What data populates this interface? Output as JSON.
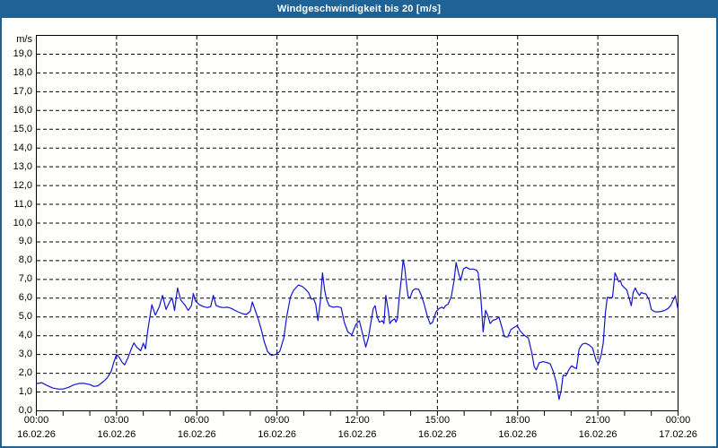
{
  "title_bar": {
    "text": "Windgeschwindigkeit bis 20 [m/s]"
  },
  "colors": {
    "frame_blue": "#1f6396",
    "title_text": "#ffffff",
    "page_bg": "#fffffd",
    "plot_bg": "#fffffd",
    "grid": "#000000",
    "axis": "#000000",
    "label_text": "#000000",
    "line": "#1414cc"
  },
  "chart_data": {
    "type": "line",
    "title": "Windgeschwindigkeit bis 20 [m/s]",
    "ylabel_unit": "m/s",
    "ylim": [
      0,
      20
    ],
    "xlim_hours": [
      0,
      24
    ],
    "grid": "dashed, horizontal every 1.0 m/s, vertical every 3 h",
    "legend": "none",
    "y_tick_labels": [
      "0,0",
      "1,0",
      "2,0",
      "3,0",
      "4,0",
      "5,0",
      "6,0",
      "7,0",
      "8,0",
      "9,0",
      "10,0",
      "11,0",
      "12,0",
      "13,0",
      "14,0",
      "15,0",
      "16,0",
      "17,0",
      "18,0",
      "19,0"
    ],
    "x_minor_tick_every_hours": 1,
    "x_major_ticks": [
      {
        "hour": 0,
        "time": "00:00",
        "date": "16.02.26"
      },
      {
        "hour": 3,
        "time": "03:00",
        "date": "16.02.26"
      },
      {
        "hour": 6,
        "time": "06:00",
        "date": "16.02.26"
      },
      {
        "hour": 9,
        "time": "09:00",
        "date": "16.02.26"
      },
      {
        "hour": 12,
        "time": "12:00",
        "date": "16.02.26"
      },
      {
        "hour": 15,
        "time": "15:00",
        "date": "16.02.26"
      },
      {
        "hour": 18,
        "time": "18:00",
        "date": "16.02.26"
      },
      {
        "hour": 21,
        "time": "21:00",
        "date": "16.02.26"
      },
      {
        "hour": 24,
        "time": "00:00",
        "date": "17.02.26"
      }
    ],
    "series": [
      {
        "name": "Windgeschwindigkeit",
        "unit": "m/s",
        "points_hour_value": [
          [
            0,
            1.45
          ],
          [
            0.2,
            1.5
          ],
          [
            0.4,
            1.35
          ],
          [
            0.6,
            1.22
          ],
          [
            0.8,
            1.16
          ],
          [
            1,
            1.16
          ],
          [
            1.2,
            1.25
          ],
          [
            1.4,
            1.38
          ],
          [
            1.6,
            1.46
          ],
          [
            1.8,
            1.46
          ],
          [
            2,
            1.4
          ],
          [
            2.15,
            1.3
          ],
          [
            2.3,
            1.33
          ],
          [
            2.5,
            1.55
          ],
          [
            2.65,
            1.75
          ],
          [
            2.8,
            2.1
          ],
          [
            2.9,
            2.6
          ],
          [
            3,
            3
          ],
          [
            3.1,
            2.85
          ],
          [
            3.2,
            2.6
          ],
          [
            3.3,
            2.45
          ],
          [
            3.42,
            2.8
          ],
          [
            3.55,
            3.3
          ],
          [
            3.65,
            3.62
          ],
          [
            3.75,
            3.4
          ],
          [
            3.9,
            3.2
          ],
          [
            4,
            3.6
          ],
          [
            4.08,
            3.3
          ],
          [
            4.18,
            4.4
          ],
          [
            4.32,
            5.65
          ],
          [
            4.45,
            5.1
          ],
          [
            4.6,
            5.55
          ],
          [
            4.72,
            6.15
          ],
          [
            4.85,
            5.4
          ],
          [
            5,
            5.85
          ],
          [
            5.08,
            6
          ],
          [
            5.17,
            5.35
          ],
          [
            5.28,
            6.55
          ],
          [
            5.4,
            5.9
          ],
          [
            5.55,
            5.65
          ],
          [
            5.68,
            5.35
          ],
          [
            5.8,
            5.6
          ],
          [
            5.87,
            6.25
          ],
          [
            5.95,
            5.85
          ],
          [
            6.1,
            5.65
          ],
          [
            6.25,
            5.55
          ],
          [
            6.4,
            5.5
          ],
          [
            6.52,
            5.55
          ],
          [
            6.62,
            6.15
          ],
          [
            6.72,
            5.62
          ],
          [
            6.85,
            5.53
          ],
          [
            7,
            5.5
          ],
          [
            7.15,
            5.52
          ],
          [
            7.3,
            5.45
          ],
          [
            7.5,
            5.3
          ],
          [
            7.7,
            5.18
          ],
          [
            7.85,
            5.13
          ],
          [
            8,
            5.3
          ],
          [
            8.08,
            5.8
          ],
          [
            8.2,
            5.3
          ],
          [
            8.3,
            4.88
          ],
          [
            8.42,
            4.3
          ],
          [
            8.52,
            3.7
          ],
          [
            8.65,
            3.15
          ],
          [
            8.8,
            2.95
          ],
          [
            8.95,
            3
          ],
          [
            9.1,
            3.15
          ],
          [
            9.25,
            3.85
          ],
          [
            9.37,
            5.05
          ],
          [
            9.5,
            6.05
          ],
          [
            9.62,
            6.42
          ],
          [
            9.8,
            6.7
          ],
          [
            9.95,
            6.62
          ],
          [
            10.05,
            6.5
          ],
          [
            10.18,
            6.3
          ],
          [
            10.28,
            5.95
          ],
          [
            10.37,
            5.97
          ],
          [
            10.45,
            5.68
          ],
          [
            10.53,
            4.8
          ],
          [
            10.62,
            5.8
          ],
          [
            10.7,
            7.35
          ],
          [
            10.78,
            6.45
          ],
          [
            10.85,
            5.95
          ],
          [
            10.95,
            5.6
          ],
          [
            11.1,
            5.52
          ],
          [
            11.25,
            5.55
          ],
          [
            11.4,
            5.5
          ],
          [
            11.52,
            4.7
          ],
          [
            11.65,
            4.2
          ],
          [
            11.8,
            4.05
          ],
          [
            11.95,
            4.6
          ],
          [
            12.08,
            4.8
          ],
          [
            12.2,
            4.1
          ],
          [
            12.32,
            3.4
          ],
          [
            12.42,
            3.9
          ],
          [
            12.5,
            4.6
          ],
          [
            12.6,
            5.45
          ],
          [
            12.67,
            5.6
          ],
          [
            12.75,
            5
          ],
          [
            12.83,
            4.72
          ],
          [
            12.94,
            4.8
          ],
          [
            13,
            4.65
          ],
          [
            13.07,
            6.15
          ],
          [
            13.16,
            5.35
          ],
          [
            13.22,
            4.65
          ],
          [
            13.3,
            4.8
          ],
          [
            13.4,
            4.9
          ],
          [
            13.45,
            4.72
          ],
          [
            13.5,
            4.9
          ],
          [
            13.57,
            6
          ],
          [
            13.65,
            7.05
          ],
          [
            13.72,
            8.05
          ],
          [
            13.78,
            7.6
          ],
          [
            13.84,
            6.8
          ],
          [
            13.9,
            6.1
          ],
          [
            13.97,
            6
          ],
          [
            14.07,
            6.4
          ],
          [
            14.18,
            6.5
          ],
          [
            14.3,
            6.47
          ],
          [
            14.4,
            6.15
          ],
          [
            14.5,
            5.7
          ],
          [
            14.62,
            5.05
          ],
          [
            14.73,
            4.62
          ],
          [
            14.82,
            4.72
          ],
          [
            14.95,
            5.28
          ],
          [
            15.06,
            5.45
          ],
          [
            15.17,
            5.52
          ],
          [
            15.24,
            5.45
          ],
          [
            15.3,
            5.6
          ],
          [
            15.4,
            5.68
          ],
          [
            15.52,
            6.1
          ],
          [
            15.62,
            6.9
          ],
          [
            15.7,
            7.9
          ],
          [
            15.78,
            7.4
          ],
          [
            15.87,
            6.95
          ],
          [
            15.97,
            7.55
          ],
          [
            16.07,
            7.65
          ],
          [
            16.2,
            7.55
          ],
          [
            16.35,
            7.55
          ],
          [
            16.45,
            7.5
          ],
          [
            16.52,
            7.37
          ],
          [
            16.62,
            6.15
          ],
          [
            16.71,
            4.2
          ],
          [
            16.8,
            5.35
          ],
          [
            16.88,
            5.1
          ],
          [
            16.97,
            4.65
          ],
          [
            17.08,
            4.82
          ],
          [
            17.2,
            4.88
          ],
          [
            17.3,
            5
          ],
          [
            17.4,
            4.5
          ],
          [
            17.5,
            3.95
          ],
          [
            17.63,
            3.93
          ],
          [
            17.75,
            4.33
          ],
          [
            17.88,
            4.45
          ],
          [
            17.98,
            4.54
          ],
          [
            18.1,
            4.25
          ],
          [
            18.25,
            4.02
          ],
          [
            18.4,
            3.88
          ],
          [
            18.53,
            3.1
          ],
          [
            18.62,
            2.35
          ],
          [
            18.7,
            2.18
          ],
          [
            18.8,
            2.55
          ],
          [
            18.95,
            2.62
          ],
          [
            19.1,
            2.57
          ],
          [
            19.22,
            2.5
          ],
          [
            19.33,
            2.1
          ],
          [
            19.45,
            1.5
          ],
          [
            19.55,
            0.6
          ],
          [
            19.63,
            1.1
          ],
          [
            19.7,
            1.9
          ],
          [
            19.8,
            1.86
          ],
          [
            19.92,
            2.2
          ],
          [
            20.02,
            2.4
          ],
          [
            20.12,
            2.3
          ],
          [
            20.2,
            2.25
          ],
          [
            20.3,
            3.3
          ],
          [
            20.42,
            3.55
          ],
          [
            20.55,
            3.6
          ],
          [
            20.68,
            3.5
          ],
          [
            20.8,
            3.35
          ],
          [
            20.94,
            2.65
          ],
          [
            21.02,
            2.5
          ],
          [
            21.12,
            2.95
          ],
          [
            21.2,
            3.6
          ],
          [
            21.28,
            5.2
          ],
          [
            21.35,
            6.05
          ],
          [
            21.45,
            6.03
          ],
          [
            21.55,
            6.05
          ],
          [
            21.64,
            7.35
          ],
          [
            21.72,
            7.1
          ],
          [
            21.78,
            6.87
          ],
          [
            21.84,
            6.95
          ],
          [
            21.9,
            6.7
          ],
          [
            22,
            6.55
          ],
          [
            22.08,
            6.45
          ],
          [
            22.15,
            6.1
          ],
          [
            22.25,
            5.6
          ],
          [
            22.32,
            6.3
          ],
          [
            22.4,
            6.55
          ],
          [
            22.48,
            6.3
          ],
          [
            22.56,
            6.15
          ],
          [
            22.62,
            6.3
          ],
          [
            22.72,
            6.25
          ],
          [
            22.8,
            6.23
          ],
          [
            22.92,
            5.9
          ],
          [
            23,
            5.4
          ],
          [
            23.12,
            5.28
          ],
          [
            23.25,
            5.27
          ],
          [
            23.38,
            5.3
          ],
          [
            23.5,
            5.35
          ],
          [
            23.62,
            5.45
          ],
          [
            23.72,
            5.6
          ],
          [
            23.82,
            5.9
          ],
          [
            23.9,
            6.13
          ],
          [
            23.97,
            5.6
          ],
          [
            24,
            5.4
          ]
        ]
      }
    ]
  }
}
